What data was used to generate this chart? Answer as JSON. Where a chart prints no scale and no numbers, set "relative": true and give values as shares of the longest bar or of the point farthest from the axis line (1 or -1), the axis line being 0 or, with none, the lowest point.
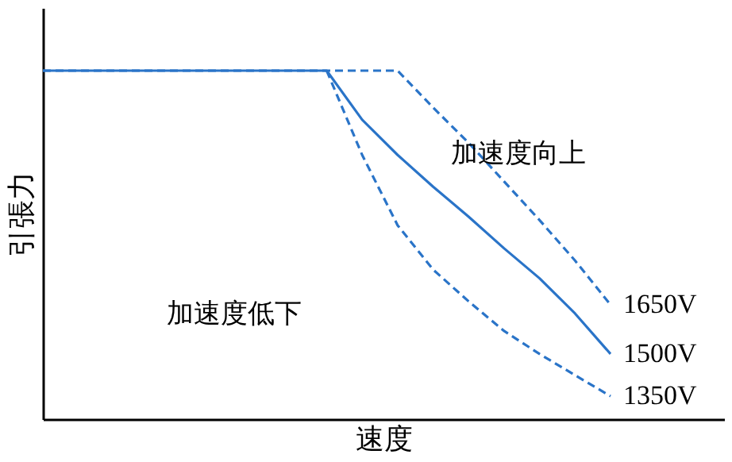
{
  "chart_data": {
    "type": "line",
    "relative": true,
    "xlabel": "速度",
    "ylabel": "引張力",
    "legend": false,
    "marker": "none",
    "tick_labels": false,
    "grid": false,
    "categories": [
      null,
      null,
      null,
      null,
      null,
      null,
      null,
      null,
      null,
      null,
      null,
      null,
      null,
      null,
      null,
      null,
      null
    ],
    "series": [
      {
        "name": "1650V",
        "color": "#2a74c8",
        "line_style": "dashed",
        "values": [
          1,
          1,
          1,
          1,
          1,
          1,
          1,
          1,
          1,
          1,
          1,
          0.894,
          0.793,
          0.682,
          0.571,
          0.455,
          0.328
        ]
      },
      {
        "name": "1500V",
        "color": "#2a74c8",
        "line_style": "solid",
        "values": [
          1,
          1,
          1,
          1,
          1,
          1,
          1,
          1,
          1,
          0.859,
          0.758,
          0.667,
          0.581,
          0.49,
          0.404,
          0.303,
          0.187
        ]
      },
      {
        "name": "1350V",
        "color": "#2a74c8",
        "line_style": "dashed",
        "values": [
          null,
          null,
          null,
          null,
          null,
          null,
          null,
          null,
          1,
          0.758,
          0.556,
          0.429,
          0.338,
          0.253,
          0.187,
          0.126,
          0.066
        ]
      }
    ],
    "annotations": [
      "加速度向上",
      "加速度低下"
    ]
  }
}
